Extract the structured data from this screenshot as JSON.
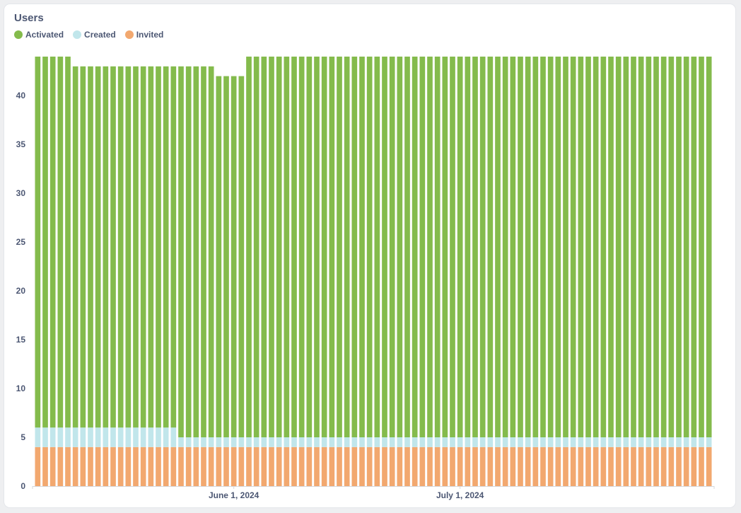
{
  "card": {
    "title": "Users"
  },
  "chart_data": {
    "type": "bar",
    "stacked": true,
    "title": "Users",
    "xlabel": "",
    "ylabel": "",
    "ylim": [
      0,
      44
    ],
    "yticks": [
      0,
      5,
      10,
      15,
      20,
      25,
      30,
      35,
      40
    ],
    "x_tick_labels": [
      "June 1, 2024",
      "July 1, 2024"
    ],
    "x_tick_dates": [
      "2024-06-01",
      "2024-07-01"
    ],
    "categories": [
      "2024-05-06",
      "2024-05-07",
      "2024-05-08",
      "2024-05-09",
      "2024-05-10",
      "2024-05-11",
      "2024-05-12",
      "2024-05-13",
      "2024-05-14",
      "2024-05-15",
      "2024-05-16",
      "2024-05-17",
      "2024-05-18",
      "2024-05-19",
      "2024-05-20",
      "2024-05-21",
      "2024-05-22",
      "2024-05-23",
      "2024-05-24",
      "2024-05-25",
      "2024-05-26",
      "2024-05-27",
      "2024-05-28",
      "2024-05-29",
      "2024-05-30",
      "2024-05-31",
      "2024-06-01",
      "2024-06-02",
      "2024-06-03",
      "2024-06-04",
      "2024-06-05",
      "2024-06-06",
      "2024-06-07",
      "2024-06-08",
      "2024-06-09",
      "2024-06-10",
      "2024-06-11",
      "2024-06-12",
      "2024-06-13",
      "2024-06-14",
      "2024-06-15",
      "2024-06-16",
      "2024-06-17",
      "2024-06-18",
      "2024-06-19",
      "2024-06-20",
      "2024-06-21",
      "2024-06-22",
      "2024-06-23",
      "2024-06-24",
      "2024-06-25",
      "2024-06-26",
      "2024-06-27",
      "2024-06-28",
      "2024-06-29",
      "2024-06-30",
      "2024-07-01",
      "2024-07-02",
      "2024-07-03",
      "2024-07-04",
      "2024-07-05",
      "2024-07-06",
      "2024-07-07",
      "2024-07-08",
      "2024-07-09",
      "2024-07-10",
      "2024-07-11",
      "2024-07-12",
      "2024-07-13",
      "2024-07-14",
      "2024-07-15",
      "2024-07-16",
      "2024-07-17",
      "2024-07-18",
      "2024-07-19",
      "2024-07-20",
      "2024-07-21",
      "2024-07-22",
      "2024-07-23",
      "2024-07-24",
      "2024-07-25",
      "2024-07-26",
      "2024-07-27",
      "2024-07-28",
      "2024-07-29",
      "2024-07-30",
      "2024-07-31",
      "2024-08-01",
      "2024-08-02",
      "2024-08-03"
    ],
    "series": [
      {
        "name": "Invited",
        "color": "#f2a86f",
        "values": [
          4,
          4,
          4,
          4,
          4,
          4,
          4,
          4,
          4,
          4,
          4,
          4,
          4,
          4,
          4,
          4,
          4,
          4,
          4,
          4,
          4,
          4,
          4,
          4,
          4,
          4,
          4,
          4,
          4,
          4,
          4,
          4,
          4,
          4,
          4,
          4,
          4,
          4,
          4,
          4,
          4,
          4,
          4,
          4,
          4,
          4,
          4,
          4,
          4,
          4,
          4,
          4,
          4,
          4,
          4,
          4,
          4,
          4,
          4,
          4,
          4,
          4,
          4,
          4,
          4,
          4,
          4,
          4,
          4,
          4,
          4,
          4,
          4,
          4,
          4,
          4,
          4,
          4,
          4,
          4,
          4,
          4,
          4,
          4,
          4,
          4,
          4,
          4,
          4,
          4
        ]
      },
      {
        "name": "Created",
        "color": "#c1e6eb",
        "values": [
          2,
          2,
          2,
          2,
          2,
          2,
          2,
          2,
          2,
          2,
          2,
          2,
          2,
          2,
          2,
          2,
          2,
          2,
          2,
          1,
          1,
          1,
          1,
          1,
          1,
          1,
          1,
          1,
          1,
          1,
          1,
          1,
          1,
          1,
          1,
          1,
          1,
          1,
          1,
          1,
          1,
          1,
          1,
          1,
          1,
          1,
          1,
          1,
          1,
          1,
          1,
          1,
          1,
          1,
          1,
          1,
          1,
          1,
          1,
          1,
          1,
          1,
          1,
          1,
          1,
          1,
          1,
          1,
          1,
          1,
          1,
          1,
          1,
          1,
          1,
          1,
          1,
          1,
          1,
          1,
          1,
          1,
          1,
          1,
          1,
          1,
          1,
          1,
          1,
          1
        ]
      },
      {
        "name": "Activated",
        "color": "#84bb4c",
        "values": [
          38,
          38,
          38,
          38,
          38,
          37,
          37,
          37,
          37,
          37,
          37,
          37,
          37,
          37,
          37,
          37,
          37,
          37,
          37,
          38,
          38,
          38,
          38,
          38,
          37,
          37,
          37,
          37,
          39,
          39,
          39,
          39,
          39,
          39,
          39,
          39,
          39,
          39,
          39,
          39,
          39,
          39,
          39,
          39,
          39,
          39,
          39,
          39,
          39,
          39,
          39,
          39,
          39,
          39,
          39,
          39,
          39,
          39,
          39,
          39,
          39,
          39,
          39,
          39,
          39,
          39,
          39,
          39,
          39,
          39,
          39,
          39,
          39,
          39,
          39,
          39,
          39,
          39,
          39,
          39,
          39,
          39,
          39,
          39,
          39,
          39,
          39,
          39,
          39,
          39
        ]
      }
    ],
    "legend_position": "top-left",
    "grid": false
  }
}
